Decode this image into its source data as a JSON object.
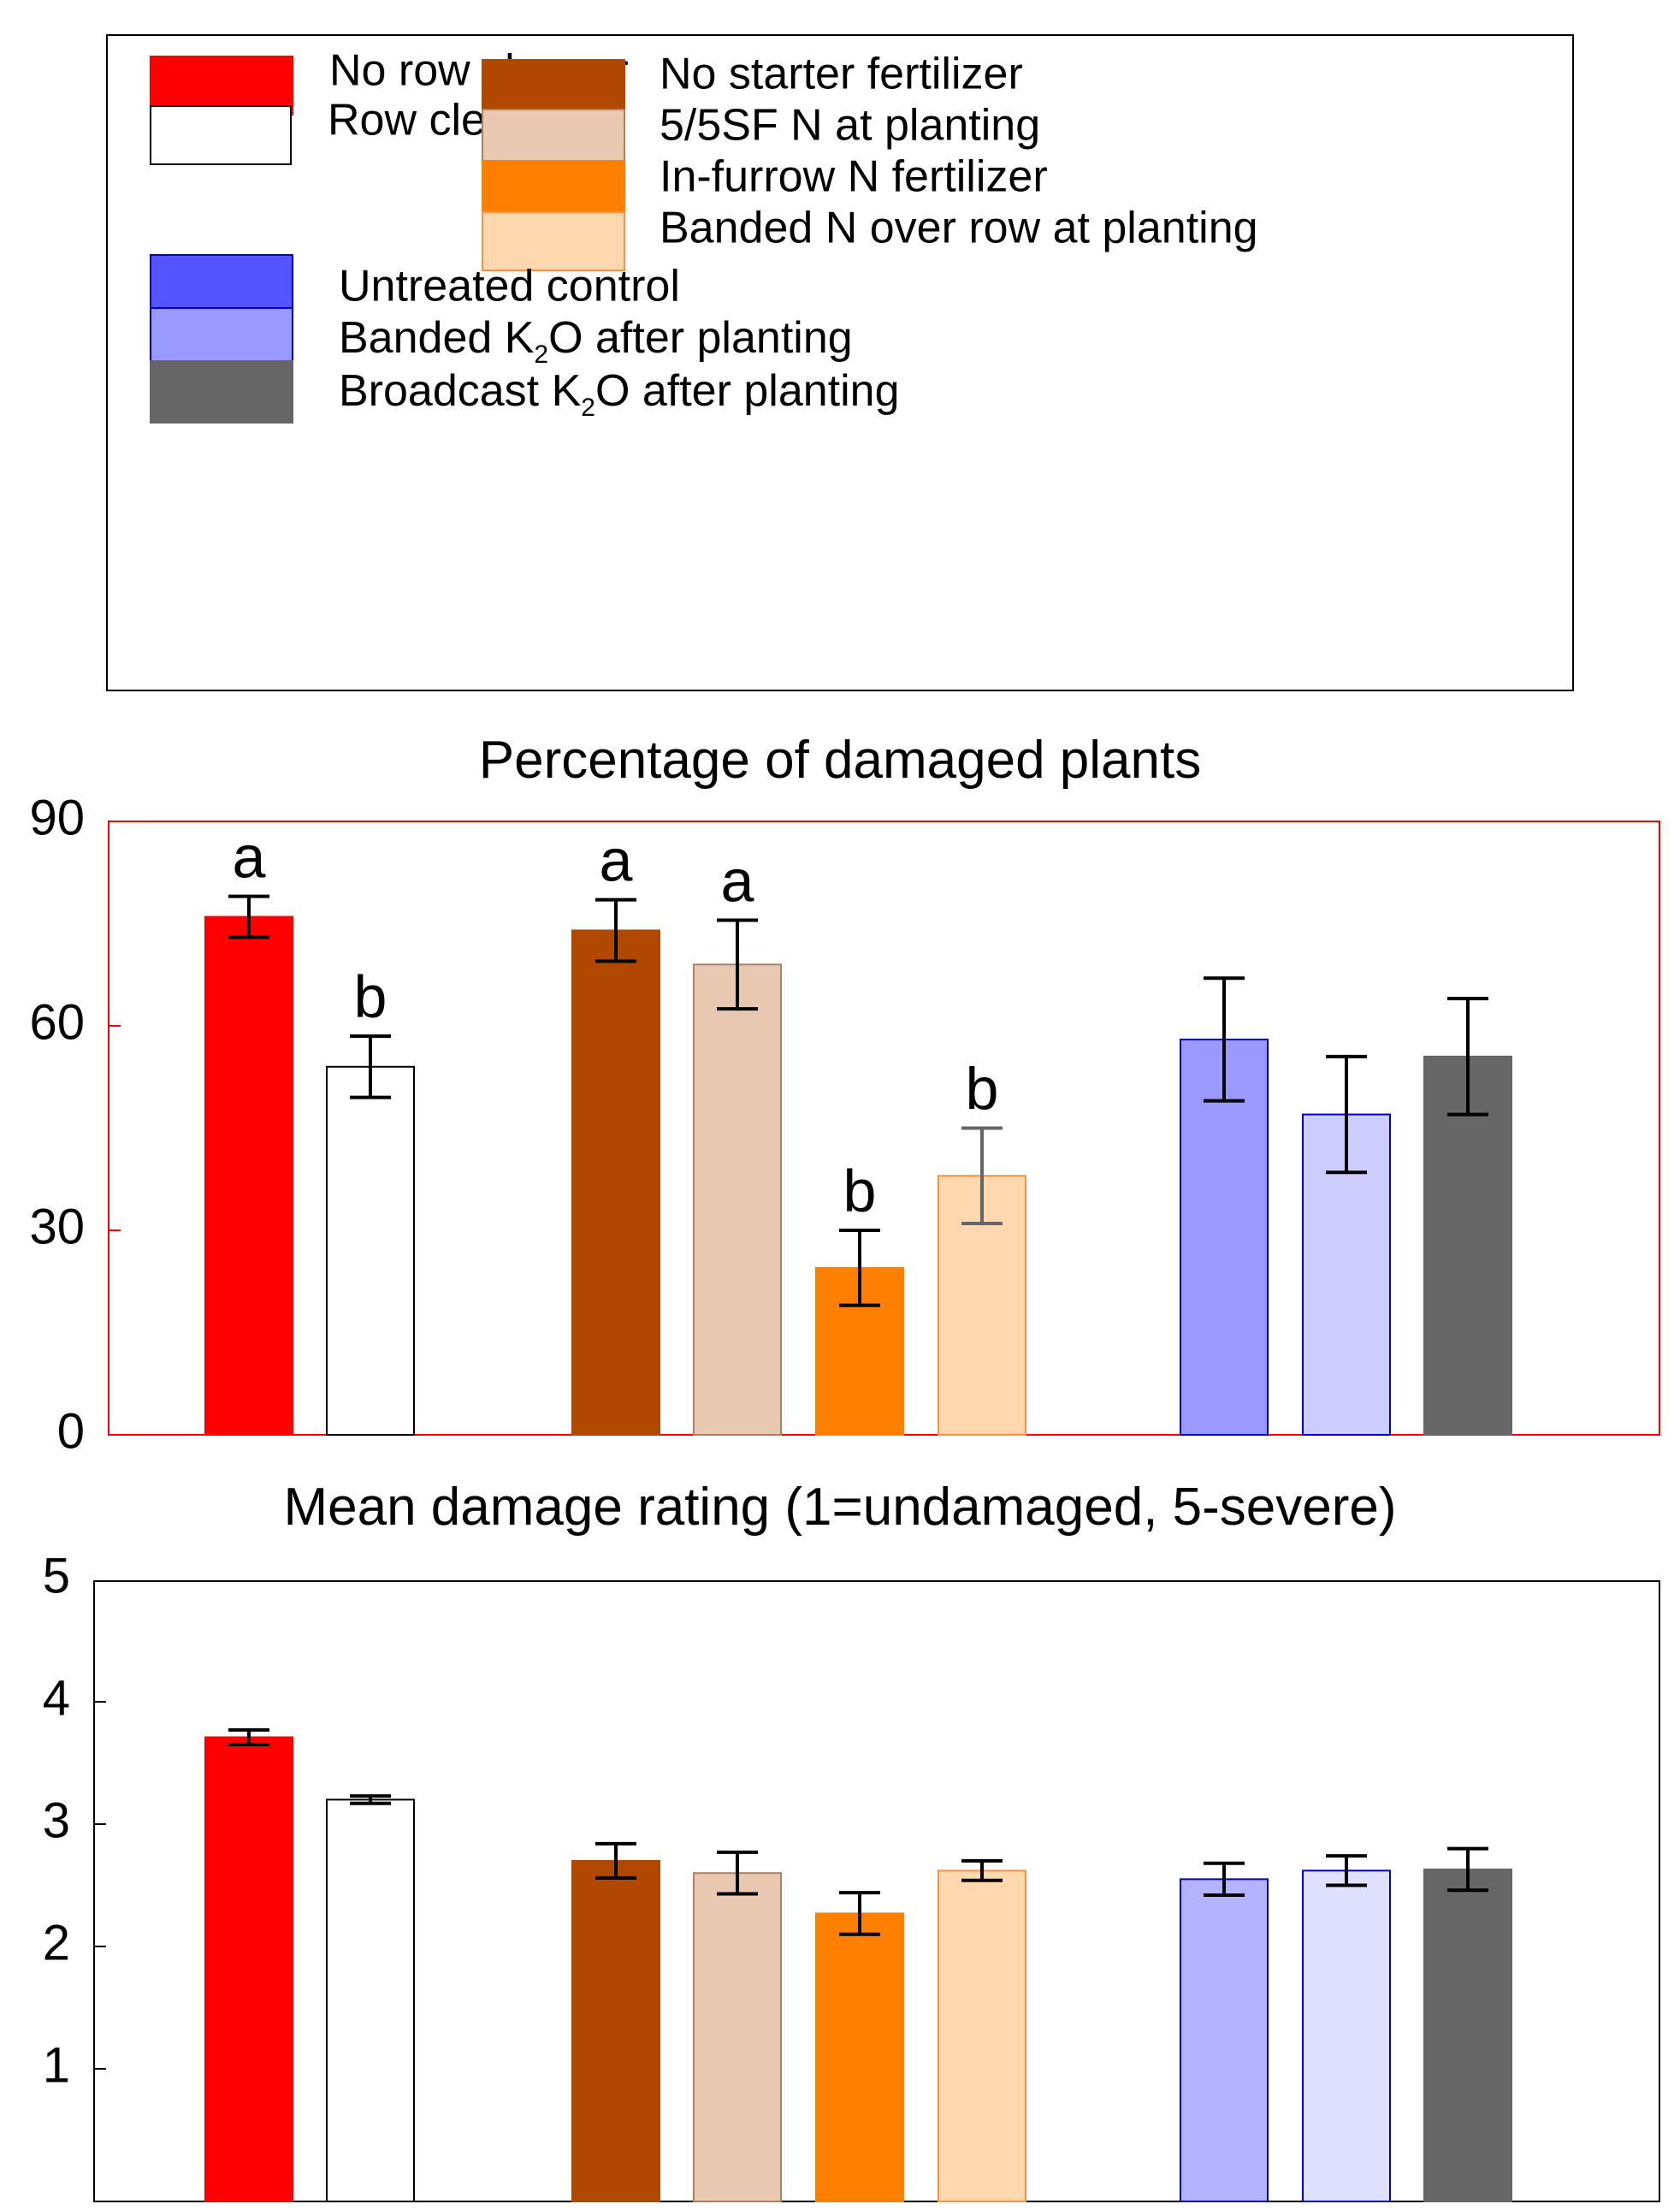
{
  "legend": {
    "items": [
      {
        "label": "No row cleaner",
        "fill": "#ff0000",
        "stroke": "#ff0000"
      },
      {
        "label": "Row cleaner",
        "fill": "#ffffff",
        "stroke": "#000000"
      },
      {
        "label": "No  starter  fertilizer",
        "fill": "#b04800",
        "stroke": "#b04800"
      },
      {
        "label": "5/5SF  N  at  planting",
        "fill": "#e8c8b0",
        "stroke": "#b08060"
      },
      {
        "label": "In-furrow  N  fertilizer",
        "fill": "#ff8000",
        "stroke": "#ff8000"
      },
      {
        "label": "Banded N over row at planting",
        "fill": "#ffd8b0",
        "stroke": "#ff9040"
      },
      {
        "label": "Untreated control",
        "fill": "#5555ff",
        "stroke": "#0000cc"
      },
      {
        "label_parts": [
          "Banded  K",
          "2",
          "O  after  planting"
        ],
        "fill": "#9999ff",
        "stroke": "#0000cc"
      },
      {
        "label_parts": [
          "Broadcast K",
          "2",
          "O after planting"
        ],
        "fill": "#666666",
        "stroke": "#666666"
      }
    ]
  },
  "chart_data": [
    {
      "type": "bar",
      "title": "Percentage of  damaged plants",
      "xlabel": "",
      "ylabel": "",
      "ylim": [
        0,
        90
      ],
      "yticks": [
        "0",
        "30",
        "60",
        "90"
      ],
      "frame_color": "#ff0000",
      "bars": [
        {
          "treatment": "No row cleaner",
          "value": 76,
          "err": 3,
          "letter": "a",
          "fill": "#ff0000",
          "stroke": "#ff0000"
        },
        {
          "treatment": "Row cleaner",
          "value": 54,
          "err": 4.5,
          "letter": "b",
          "fill": "#ffffff",
          "stroke": "#000000"
        },
        {
          "treatment": "No starter fertilizer",
          "value": 74,
          "err": 4.5,
          "letter": "a",
          "fill": "#b04800",
          "stroke": "#b04800"
        },
        {
          "treatment": "5/5SF N at planting",
          "value": 69,
          "err": 6.5,
          "letter": "a",
          "fill": "#e8c8b0",
          "stroke": "#b08060"
        },
        {
          "treatment": "In-furrow N fertilizer",
          "value": 24.5,
          "err": 5.5,
          "letter": "b",
          "fill": "#ff8000",
          "stroke": "#ff8000"
        },
        {
          "treatment": "Banded N over row at planting",
          "value": 38,
          "err": 7,
          "letter": "b",
          "fill": "#ffd8b0",
          "stroke": "#ff9040"
        },
        {
          "treatment": "Untreated control",
          "value": 58,
          "err": 9,
          "letter": "",
          "fill": "#9999ff",
          "stroke": "#0000cc"
        },
        {
          "treatment": "Banded K2O after planting",
          "value": 47,
          "err": 8.5,
          "letter": "",
          "fill": "#ccccff",
          "stroke": "#0000cc"
        },
        {
          "treatment": "Broadcast K2O after planting",
          "value": 55.5,
          "err": 8.5,
          "letter": "",
          "fill": "#666666",
          "stroke": "#666666"
        }
      ]
    },
    {
      "type": "bar",
      "title": "Mean damage rating (1=undamaged, 5-severe)",
      "xlabel": "",
      "ylabel": "",
      "ylim": [
        0,
        5
      ],
      "yticks": [
        "1",
        "2",
        "3",
        "4",
        "5"
      ],
      "frame_color": "#000000",
      "bars": [
        {
          "treatment": "No row cleaner",
          "value": 3.71,
          "err": 0.06,
          "letter": "",
          "fill": "#ff0000",
          "stroke": "#ff0000"
        },
        {
          "treatment": "Row cleaner",
          "value": 3.2,
          "err": 0.03,
          "letter": "",
          "fill": "#ffffff",
          "stroke": "#000000"
        },
        {
          "treatment": "No starter fertilizer",
          "value": 2.7,
          "err": 0.14,
          "letter": "",
          "fill": "#b04800",
          "stroke": "#b04800"
        },
        {
          "treatment": "5/5SF N at planting",
          "value": 2.6,
          "err": 0.17,
          "letter": "",
          "fill": "#e8c8b0",
          "stroke": "#b08060"
        },
        {
          "treatment": "In-furrow N fertilizer",
          "value": 2.27,
          "err": 0.17,
          "letter": "",
          "fill": "#ff8000",
          "stroke": "#ff8000"
        },
        {
          "treatment": "Banded N over row at planting",
          "value": 2.62,
          "err": 0.08,
          "letter": "",
          "fill": "#ffd8b0",
          "stroke": "#ff9040"
        },
        {
          "treatment": "Untreated control",
          "value": 2.55,
          "err": 0.13,
          "letter": "",
          "fill": "#b3b3ff",
          "stroke": "#0000cc"
        },
        {
          "treatment": "Banded K2O after planting",
          "value": 2.62,
          "err": 0.12,
          "letter": "",
          "fill": "#e0e0ff",
          "stroke": "#0000cc"
        },
        {
          "treatment": "Broadcast K2O after planting",
          "value": 2.63,
          "err": 0.17,
          "letter": "",
          "fill": "#666666",
          "stroke": "#666666"
        }
      ]
    }
  ]
}
